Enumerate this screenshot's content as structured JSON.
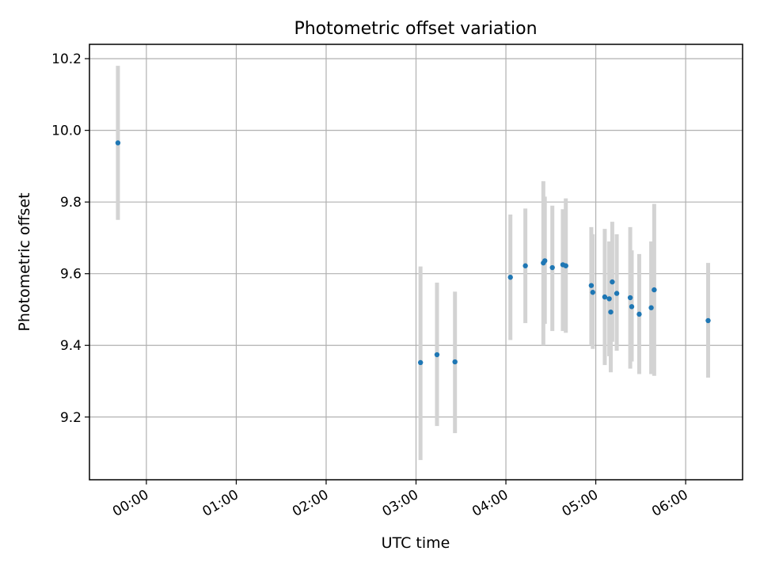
{
  "chart_data": {
    "type": "scatter",
    "title": "Photometric offset variation",
    "xlabel": "UTC time",
    "ylabel": "Photometric offset",
    "x_tick_labels": [
      "00:00",
      "01:00",
      "02:00",
      "03:00",
      "04:00",
      "05:00",
      "06:00"
    ],
    "y_tick_labels": [
      "9.2",
      "9.4",
      "9.6",
      "9.8",
      "10.0",
      "10.2"
    ],
    "xlim": [
      "23:22",
      "06:38"
    ],
    "ylim": [
      9.025,
      10.24
    ],
    "grid": true,
    "colors": {
      "marker": "#1f77b4",
      "errorbar": "#d3d3d3",
      "grid": "#b0b0b0"
    },
    "series": [
      {
        "points": [
          {
            "x": "23:41",
            "y": 9.965,
            "ylow": 9.75,
            "yhigh": 10.18
          },
          {
            "x": "03:03",
            "y": 9.352,
            "ylow": 9.08,
            "yhigh": 9.62
          },
          {
            "x": "03:14",
            "y": 9.374,
            "ylow": 9.175,
            "yhigh": 9.575
          },
          {
            "x": "03:26",
            "y": 9.354,
            "ylow": 9.155,
            "yhigh": 9.55
          },
          {
            "x": "04:03",
            "y": 9.59,
            "ylow": 9.415,
            "yhigh": 9.765
          },
          {
            "x": "04:13",
            "y": 9.622,
            "ylow": 9.462,
            "yhigh": 9.782
          },
          {
            "x": "04:25",
            "y": 9.63,
            "ylow": 9.4,
            "yhigh": 9.858
          },
          {
            "x": "04:26",
            "y": 9.636,
            "ylow": 9.46,
            "yhigh": 9.815
          },
          {
            "x": "04:31",
            "y": 9.617,
            "ylow": 9.44,
            "yhigh": 9.79
          },
          {
            "x": "04:38",
            "y": 9.625,
            "ylow": 9.44,
            "yhigh": 9.78
          },
          {
            "x": "04:40",
            "y": 9.622,
            "ylow": 9.435,
            "yhigh": 9.81
          },
          {
            "x": "04:57",
            "y": 9.567,
            "ylow": 9.4,
            "yhigh": 9.73
          },
          {
            "x": "04:58",
            "y": 9.548,
            "ylow": 9.39,
            "yhigh": 9.71
          },
          {
            "x": "05:06",
            "y": 9.535,
            "ylow": 9.345,
            "yhigh": 9.725
          },
          {
            "x": "05:09",
            "y": 9.53,
            "ylow": 9.37,
            "yhigh": 9.69
          },
          {
            "x": "05:10",
            "y": 9.493,
            "ylow": 9.325,
            "yhigh": 9.66
          },
          {
            "x": "05:11",
            "y": 9.577,
            "ylow": 9.41,
            "yhigh": 9.745
          },
          {
            "x": "05:14",
            "y": 9.545,
            "ylow": 9.385,
            "yhigh": 9.71
          },
          {
            "x": "05:23",
            "y": 9.533,
            "ylow": 9.335,
            "yhigh": 9.73
          },
          {
            "x": "05:24",
            "y": 9.508,
            "ylow": 9.355,
            "yhigh": 9.665
          },
          {
            "x": "05:29",
            "y": 9.487,
            "ylow": 9.32,
            "yhigh": 9.655
          },
          {
            "x": "05:37",
            "y": 9.505,
            "ylow": 9.32,
            "yhigh": 9.69
          },
          {
            "x": "05:39",
            "y": 9.555,
            "ylow": 9.315,
            "yhigh": 9.795
          },
          {
            "x": "06:15",
            "y": 9.469,
            "ylow": 9.31,
            "yhigh": 9.63
          }
        ]
      }
    ]
  }
}
